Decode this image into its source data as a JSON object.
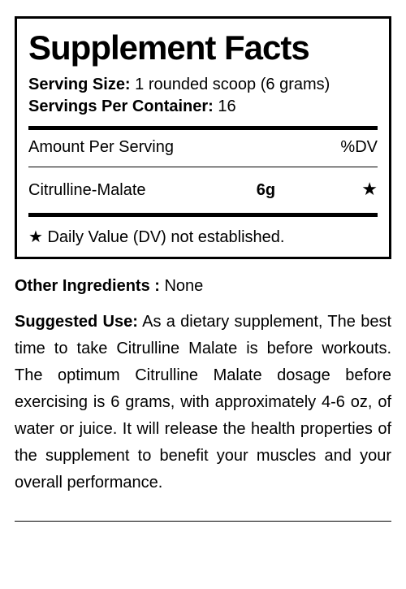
{
  "panel": {
    "title": "Supplement Facts",
    "serving_size_label": "Serving Size:",
    "serving_size_value": " 1 rounded scoop (6 grams)",
    "servings_per_label": "Servings Per Container:",
    "servings_per_value": " 16",
    "header_amount": "Amount Per Serving",
    "header_dv": "%DV",
    "ingredient": {
      "name": "Citrulline-Malate",
      "amount": "6g",
      "dv": "★"
    },
    "footnote": "★ Daily Value (DV) not established."
  },
  "other_ingredients": {
    "label": "Other Ingredients :",
    "value": " None"
  },
  "suggested_use": {
    "label": "Suggested Use:",
    "text": " As a dietary supplement, The best time to take Citrulline Malate is before workouts. The optimum Citrulline Malate dosage before exercising is 6 grams, with approximately 4-6 oz, of water or juice. It will release the health properties of the supplement to benefit your muscles and your overall performance."
  }
}
